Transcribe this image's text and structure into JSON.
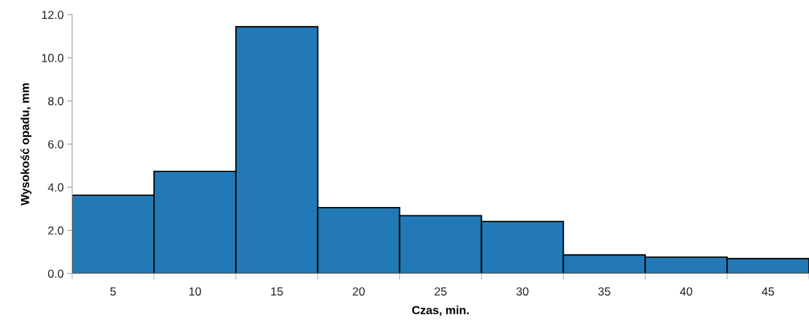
{
  "chart_data": {
    "type": "bar",
    "xlabel": "Czas, min.",
    "ylabel": "Wysokość opadu, mm",
    "categories": [
      "5",
      "10",
      "15",
      "20",
      "25",
      "30",
      "35",
      "40",
      "45"
    ],
    "values": [
      3.63,
      4.73,
      11.44,
      3.05,
      2.68,
      2.41,
      0.86,
      0.76,
      0.69
    ],
    "color": "#2279b5",
    "ylim": [
      0,
      12
    ],
    "yticks": [
      {
        "value": 0,
        "label": "0.0"
      },
      {
        "value": 2,
        "label": "2.0"
      },
      {
        "value": 4,
        "label": "4.0"
      },
      {
        "value": 6,
        "label": "6.0"
      },
      {
        "value": 8,
        "label": "8.0"
      },
      {
        "value": 10,
        "label": "10.0"
      },
      {
        "value": 12,
        "label": "12.0"
      }
    ],
    "grid": false
  }
}
